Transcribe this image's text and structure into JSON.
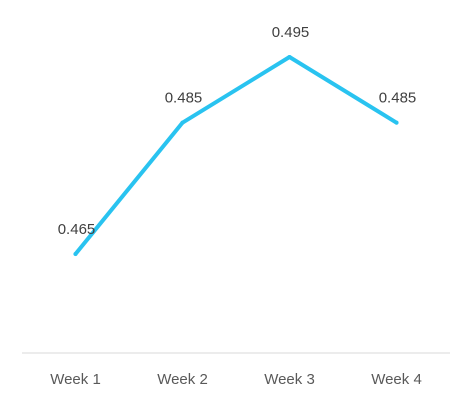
{
  "chart_data": {
    "type": "line",
    "title": "",
    "xlabel": "",
    "ylabel": "",
    "categories": [
      "Week 1",
      "Week 2",
      "Week 3",
      "Week 4"
    ],
    "series": [
      {
        "values": [
          0.465,
          0.485,
          0.495,
          0.485
        ],
        "color": "#29C3F0"
      }
    ],
    "data_labels": [
      "0.465",
      "0.485",
      "0.495",
      "0.485"
    ],
    "ylim": [
      0.445,
      0.5
    ],
    "grid": false,
    "legend": "none",
    "colors": {
      "axis": "#D9D9D9",
      "tick_text": "#595959",
      "label_text": "#404040"
    }
  }
}
